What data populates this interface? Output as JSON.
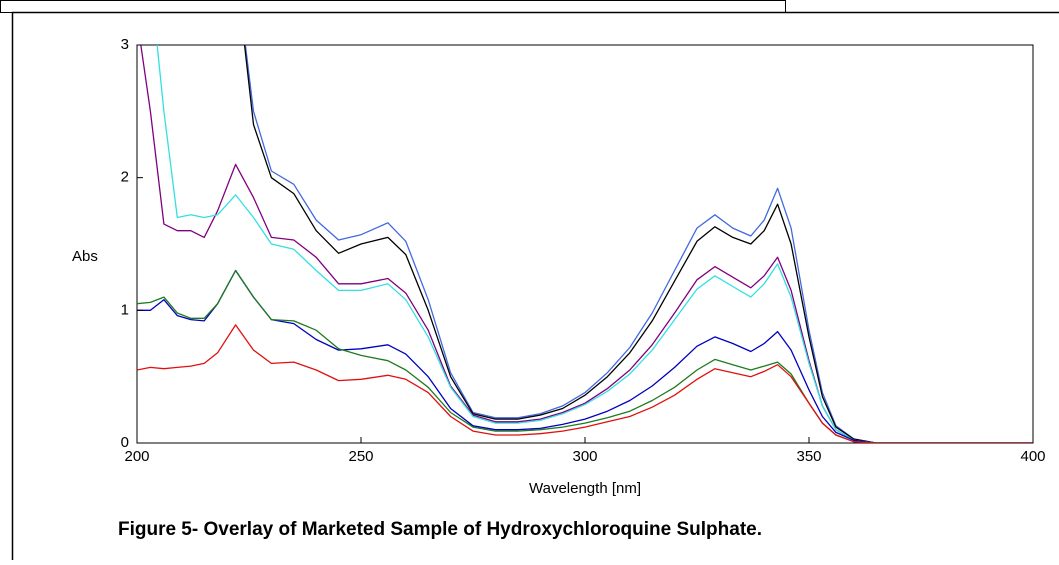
{
  "chart_data": {
    "type": "line",
    "title": "Figure 5- Overlay of Marketed Sample of Hydroxychloroquine Sulphate.",
    "xlabel": "Wavelength [nm]",
    "ylabel": "Abs",
    "x": [
      200,
      203,
      206,
      209,
      212,
      215,
      218,
      222,
      226,
      230,
      235,
      240,
      245,
      250,
      256,
      260,
      265,
      270,
      275,
      280,
      285,
      290,
      295,
      300,
      305,
      310,
      315,
      320,
      325,
      329,
      333,
      337,
      340,
      343,
      346,
      350,
      353,
      356,
      360,
      365,
      370,
      380,
      390,
      400
    ],
    "series": [
      {
        "color": "#4169e1",
        "values": [
          null,
          null,
          null,
          null,
          null,
          null,
          null,
          3.6,
          2.5,
          2.05,
          1.95,
          1.68,
          1.53,
          1.57,
          1.66,
          1.52,
          1.08,
          0.53,
          0.23,
          0.19,
          0.19,
          0.22,
          0.28,
          0.38,
          0.53,
          0.72,
          0.98,
          1.3,
          1.62,
          1.72,
          1.62,
          1.56,
          1.68,
          1.92,
          1.62,
          0.85,
          0.38,
          0.13,
          0.03,
          0,
          0,
          0,
          0,
          0
        ]
      },
      {
        "color": "#000000",
        "values": [
          null,
          null,
          null,
          null,
          null,
          null,
          null,
          3.6,
          2.4,
          2.0,
          1.88,
          1.6,
          1.43,
          1.5,
          1.55,
          1.42,
          1.0,
          0.5,
          0.22,
          0.18,
          0.18,
          0.21,
          0.26,
          0.36,
          0.5,
          0.68,
          0.92,
          1.22,
          1.52,
          1.63,
          1.55,
          1.5,
          1.6,
          1.8,
          1.5,
          0.8,
          0.35,
          0.12,
          0.03,
          0,
          0,
          0,
          0,
          0
        ]
      },
      {
        "color": "#800080",
        "values": [
          3.2,
          2.5,
          1.65,
          1.6,
          1.6,
          1.55,
          1.75,
          2.1,
          1.85,
          1.55,
          1.53,
          1.4,
          1.2,
          1.2,
          1.24,
          1.13,
          0.85,
          0.43,
          0.21,
          0.16,
          0.16,
          0.18,
          0.23,
          0.3,
          0.41,
          0.55,
          0.74,
          0.98,
          1.23,
          1.33,
          1.25,
          1.17,
          1.26,
          1.4,
          1.15,
          0.62,
          0.28,
          0.1,
          0.02,
          0,
          0,
          0,
          0,
          0
        ]
      },
      {
        "color": "#33e0e0",
        "values": [
          3.2,
          3.5,
          2.5,
          1.7,
          1.72,
          1.7,
          1.72,
          1.87,
          1.7,
          1.5,
          1.46,
          1.3,
          1.15,
          1.15,
          1.2,
          1.08,
          0.8,
          0.42,
          0.2,
          0.15,
          0.15,
          0.17,
          0.22,
          0.29,
          0.39,
          0.52,
          0.7,
          0.93,
          1.16,
          1.26,
          1.18,
          1.1,
          1.2,
          1.35,
          1.1,
          0.6,
          0.28,
          0.1,
          0.02,
          0,
          0,
          0,
          0,
          0
        ]
      },
      {
        "color": "#0000c0",
        "values": [
          1.0,
          1.0,
          1.08,
          0.96,
          0.93,
          0.92,
          1.05,
          1.3,
          1.1,
          0.93,
          0.9,
          0.78,
          0.7,
          0.71,
          0.74,
          0.67,
          0.5,
          0.26,
          0.13,
          0.1,
          0.1,
          0.11,
          0.14,
          0.18,
          0.24,
          0.32,
          0.43,
          0.57,
          0.73,
          0.8,
          0.75,
          0.69,
          0.75,
          0.84,
          0.7,
          0.4,
          0.2,
          0.08,
          0.02,
          0,
          0,
          0,
          0,
          0
        ]
      },
      {
        "color": "#1e7b1e",
        "values": [
          1.05,
          1.06,
          1.1,
          0.98,
          0.94,
          0.94,
          1.05,
          1.3,
          1.1,
          0.93,
          0.92,
          0.85,
          0.71,
          0.66,
          0.62,
          0.55,
          0.42,
          0.23,
          0.12,
          0.09,
          0.09,
          0.1,
          0.12,
          0.15,
          0.19,
          0.24,
          0.32,
          0.42,
          0.55,
          0.63,
          0.59,
          0.55,
          0.58,
          0.61,
          0.52,
          0.3,
          0.15,
          0.06,
          0.01,
          0,
          0,
          0,
          0,
          0
        ]
      },
      {
        "color": "#e01010",
        "values": [
          0.55,
          0.57,
          0.56,
          0.57,
          0.58,
          0.6,
          0.68,
          0.89,
          0.7,
          0.6,
          0.61,
          0.55,
          0.47,
          0.48,
          0.51,
          0.48,
          0.38,
          0.2,
          0.09,
          0.06,
          0.06,
          0.07,
          0.09,
          0.12,
          0.16,
          0.2,
          0.27,
          0.36,
          0.48,
          0.56,
          0.53,
          0.5,
          0.54,
          0.59,
          0.5,
          0.3,
          0.15,
          0.06,
          0.01,
          0,
          0,
          0,
          0,
          0
        ]
      }
    ],
    "xlim": [
      200,
      400
    ],
    "xticks": [
      200,
      250,
      300,
      350,
      400
    ],
    "ylim": [
      0,
      3
    ],
    "yticks": [
      0,
      1,
      2,
      3
    ]
  }
}
